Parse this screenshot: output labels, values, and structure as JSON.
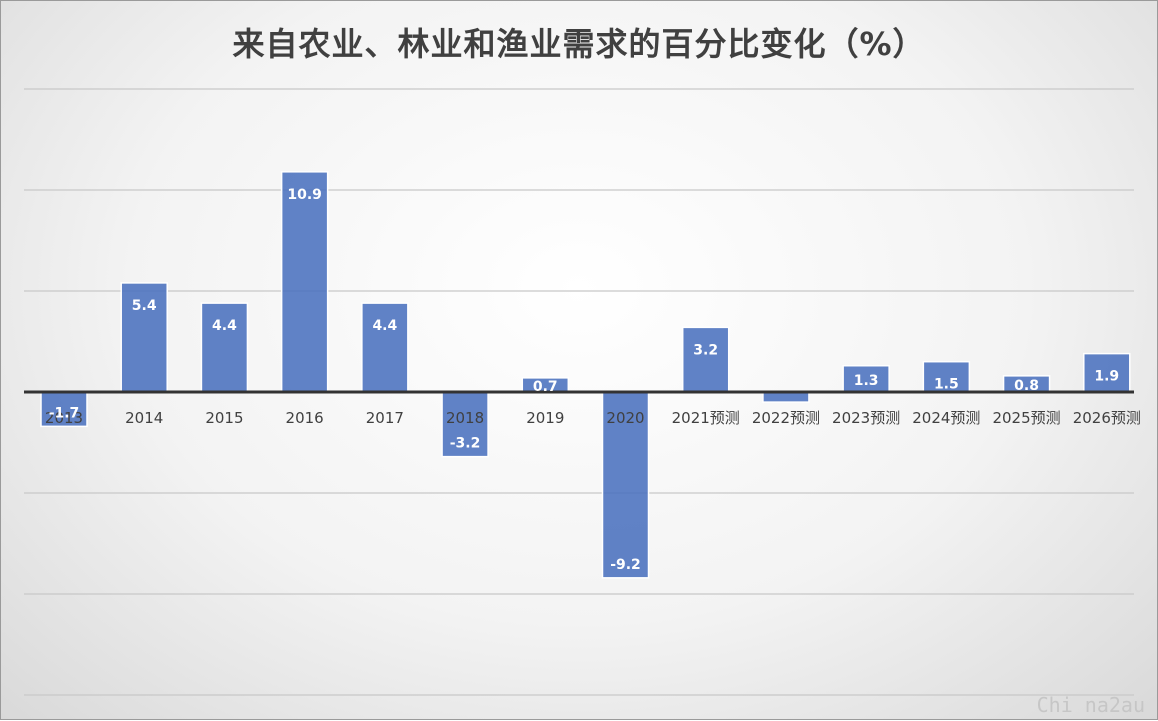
{
  "chart_data": {
    "type": "bar",
    "title": "来自农业、林业和渔业需求的百分比变化（%）",
    "xlabel": "",
    "ylabel": "",
    "categories": [
      "2013",
      "2014",
      "2015",
      "2016",
      "2017",
      "2018",
      "2019",
      "2020",
      "2021预测",
      "2022预测",
      "2023预测",
      "2024预测",
      "2025预测",
      "2026预测"
    ],
    "values": [
      -1.7,
      5.4,
      4.4,
      10.9,
      4.4,
      -3.2,
      0.7,
      -9.2,
      3.2,
      -0.5,
      1.3,
      1.5,
      0.8,
      1.9
    ],
    "data_labels": [
      "-1.7",
      "5.4",
      "4.4",
      "10.9",
      "4.4",
      "-3.2",
      "0.7",
      "-9.2",
      "3.2",
      "",
      "1.3",
      "1.5",
      "0.8",
      "1.9"
    ],
    "ylim": [
      -15,
      15
    ],
    "gridlines": [
      -15,
      -10,
      -5,
      0,
      5,
      10,
      15
    ],
    "grid": true,
    "legend": "none",
    "bar_color": "#4f74c0"
  },
  "watermark": "Chi na2au"
}
